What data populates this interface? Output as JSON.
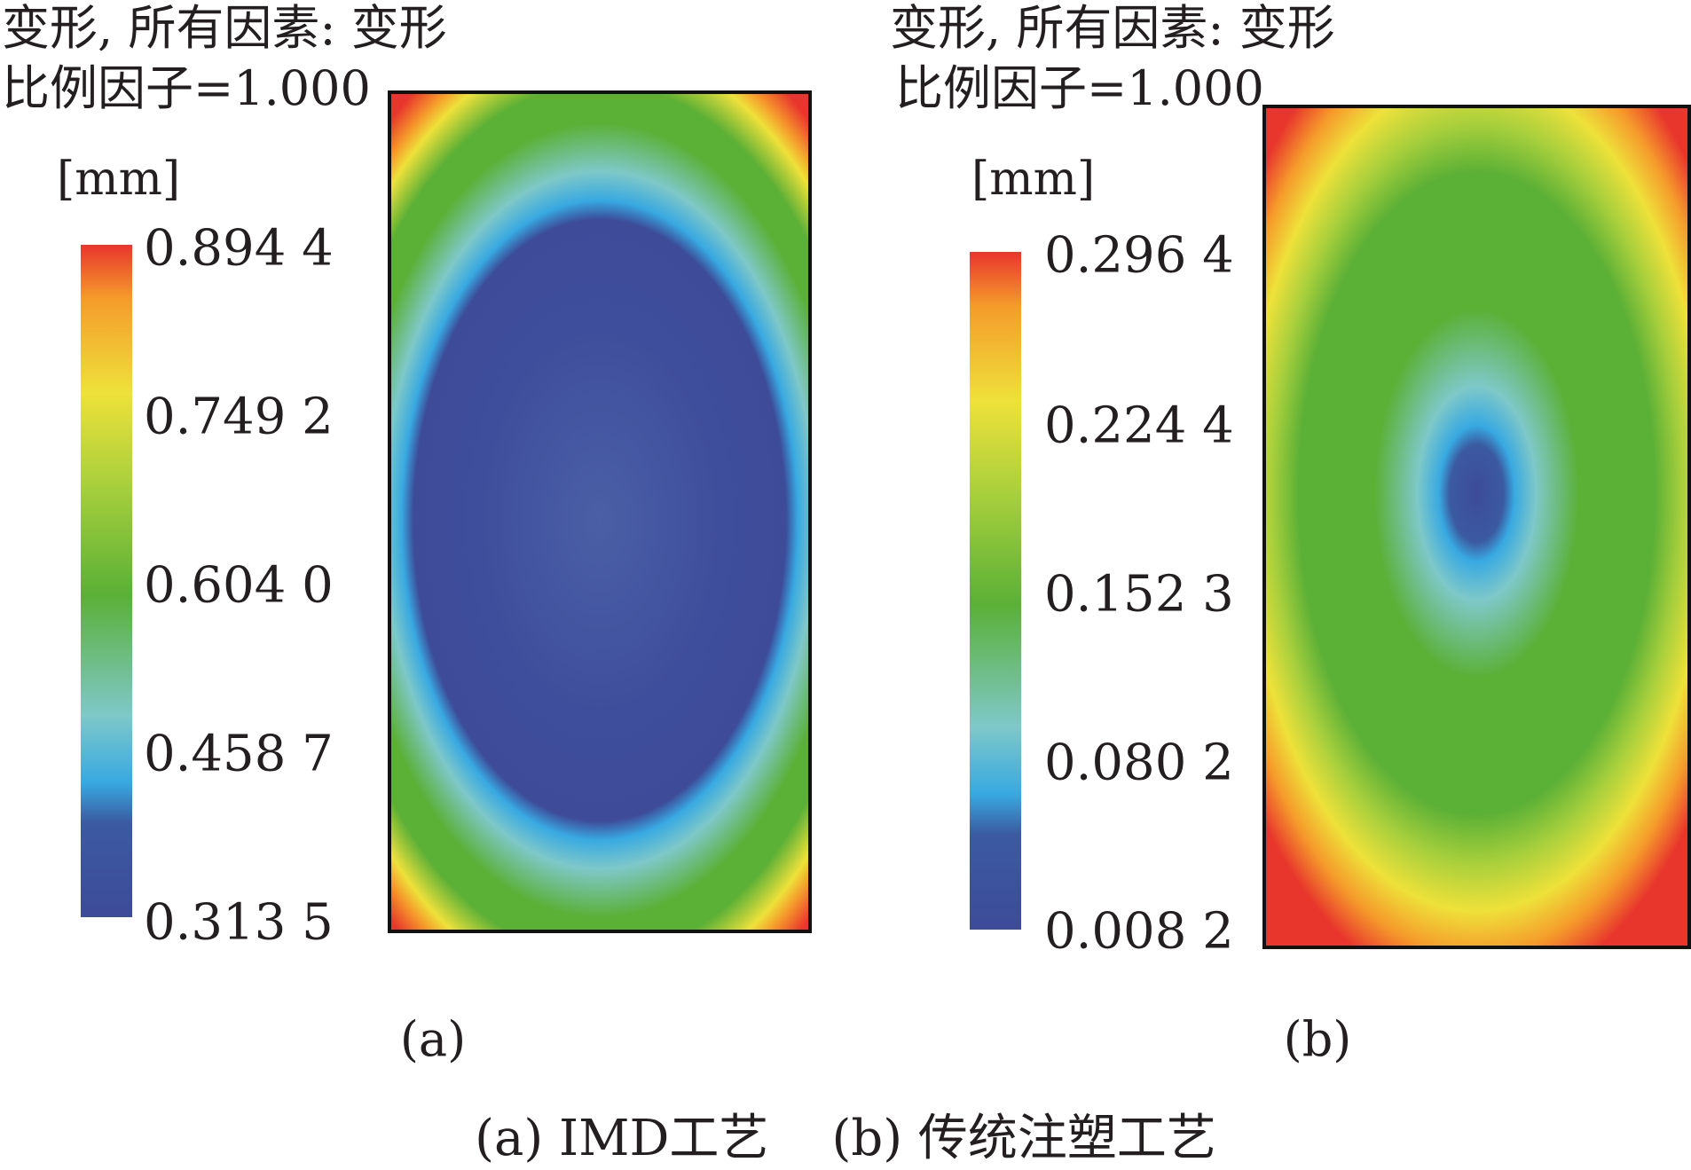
{
  "chart_data": [
    {
      "type": "heatmap",
      "panel_label": "(a)",
      "title_line1": "变形, 所有因素: 变形",
      "title_line2": "比例因子=1.000",
      "unit": "[mm]",
      "colorbar_ticks": [
        "0.894 4",
        "0.749 2",
        "0.604 0",
        "0.458 7",
        "0.313 5"
      ],
      "range": [
        0.3135,
        0.8944
      ],
      "colormap": [
        "#e8362c",
        "#f59b2b",
        "#eee13a",
        "#a7cf3c",
        "#5bb036",
        "#7ec8c8",
        "#38a9e1",
        "#3b5aa1",
        "#3d4b99"
      ]
    },
    {
      "type": "heatmap",
      "panel_label": "(b)",
      "title_line1": "变形, 所有因素: 变形",
      "title_line2": "比例因子=1.000",
      "unit": "[mm]",
      "colorbar_ticks": [
        "0.296 4",
        "0.224 4",
        "0.152 3",
        "0.080 2",
        "0.008 2"
      ],
      "range": [
        0.0082,
        0.2964
      ],
      "colormap": [
        "#e8362c",
        "#f59b2b",
        "#eee13a",
        "#a7cf3c",
        "#5bb036",
        "#7ec8c8",
        "#38a9e1",
        "#3b5aa1",
        "#3d4b99"
      ]
    }
  ],
  "caption": "(a) IMD工艺    (b) 传统注塑工艺"
}
